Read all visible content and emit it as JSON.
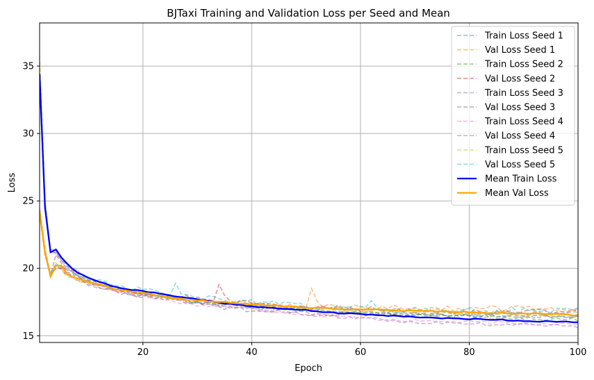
{
  "chart_data": {
    "type": "line",
    "title": "BJTaxi Training and Validation Loss per Seed and Mean",
    "xlabel": "Epoch",
    "ylabel": "Loss",
    "xlim": [
      1,
      100
    ],
    "ylim": [
      14.5,
      38.2
    ],
    "xticks": [
      20,
      40,
      60,
      80,
      100
    ],
    "yticks": [
      15,
      20,
      25,
      30,
      35
    ],
    "grid": true,
    "legend_position": "top-right",
    "seed_series": [
      {
        "name": "Train Loss Seed 1",
        "color": "#1f77b4",
        "style": "dashed",
        "anchors": [
          [
            1,
            34.5
          ],
          [
            2,
            25.0
          ],
          [
            3,
            21.3
          ],
          [
            4,
            21.1
          ],
          [
            6,
            20.2
          ],
          [
            10,
            19.1
          ],
          [
            15,
            18.5
          ],
          [
            20,
            18.1
          ],
          [
            30,
            17.5
          ],
          [
            40,
            17.2
          ],
          [
            50,
            16.9
          ],
          [
            60,
            16.7
          ],
          [
            70,
            16.6
          ],
          [
            80,
            16.5
          ],
          [
            90,
            16.5
          ],
          [
            100,
            16.4
          ]
        ],
        "noise": 0.12,
        "seed": 11
      },
      {
        "name": "Val Loss Seed 1",
        "color": "#ff7f0e",
        "style": "dashed",
        "anchors": [
          [
            1,
            24.5
          ],
          [
            2,
            21.5
          ],
          [
            3,
            19.5
          ],
          [
            4,
            20.4
          ],
          [
            6,
            19.5
          ],
          [
            10,
            19.0
          ],
          [
            15,
            18.4
          ],
          [
            20,
            18.1
          ],
          [
            30,
            17.6
          ],
          [
            40,
            17.3
          ],
          [
            50,
            17.2
          ],
          [
            60,
            17.1
          ],
          [
            70,
            17.1
          ],
          [
            80,
            17.0
          ],
          [
            90,
            17.0
          ],
          [
            100,
            17.0
          ]
        ],
        "noise": 0.22,
        "seed": 12,
        "spikes": [
          [
            51,
            18.5
          ],
          [
            52,
            17.6
          ]
        ]
      },
      {
        "name": "Train Loss Seed 2",
        "color": "#2ca02c",
        "style": "dashed",
        "anchors": [
          [
            1,
            34.2
          ],
          [
            2,
            24.8
          ],
          [
            3,
            21.2
          ],
          [
            4,
            21.3
          ],
          [
            6,
            20.3
          ],
          [
            10,
            19.2
          ],
          [
            15,
            18.5
          ],
          [
            20,
            18.1
          ],
          [
            30,
            17.5
          ],
          [
            40,
            17.2
          ],
          [
            50,
            16.9
          ],
          [
            60,
            16.7
          ],
          [
            70,
            16.5
          ],
          [
            80,
            16.4
          ],
          [
            90,
            16.3
          ],
          [
            100,
            16.2
          ]
        ],
        "noise": 0.12,
        "seed": 13
      },
      {
        "name": "Val Loss Seed 2",
        "color": "#d62728",
        "style": "dashed",
        "anchors": [
          [
            1,
            24.0
          ],
          [
            2,
            21.0
          ],
          [
            3,
            19.4
          ],
          [
            4,
            20.0
          ],
          [
            6,
            20.0
          ],
          [
            10,
            19.0
          ],
          [
            15,
            18.5
          ],
          [
            20,
            18.2
          ],
          [
            30,
            17.8
          ],
          [
            40,
            17.4
          ],
          [
            50,
            17.1
          ],
          [
            60,
            17.0
          ],
          [
            70,
            16.9
          ],
          [
            80,
            16.8
          ],
          [
            90,
            16.8
          ],
          [
            100,
            16.8
          ]
        ],
        "noise": 0.22,
        "seed": 14,
        "spikes": [
          [
            34,
            18.8
          ],
          [
            35,
            18.0
          ]
        ]
      },
      {
        "name": "Train Loss Seed 3",
        "color": "#9467bd",
        "style": "dashed",
        "anchors": [
          [
            1,
            34.0
          ],
          [
            2,
            24.6
          ],
          [
            3,
            21.2
          ],
          [
            4,
            21.2
          ],
          [
            6,
            20.0
          ],
          [
            10,
            19.0
          ],
          [
            15,
            18.4
          ],
          [
            20,
            18.0
          ],
          [
            30,
            17.4
          ],
          [
            40,
            17.0
          ],
          [
            50,
            16.6
          ],
          [
            60,
            16.3
          ],
          [
            70,
            16.0
          ],
          [
            80,
            15.9
          ],
          [
            90,
            15.8
          ],
          [
            100,
            15.7
          ]
        ],
        "noise": 0.12,
        "seed": 15
      },
      {
        "name": "Val Loss Seed 3",
        "color": "#8c564b",
        "style": "dashed",
        "anchors": [
          [
            1,
            24.3
          ],
          [
            2,
            21.2
          ],
          [
            3,
            19.5
          ],
          [
            4,
            21.0
          ],
          [
            6,
            19.8
          ],
          [
            10,
            18.9
          ],
          [
            15,
            18.3
          ],
          [
            20,
            18.0
          ],
          [
            30,
            17.4
          ],
          [
            40,
            16.9
          ],
          [
            50,
            16.7
          ],
          [
            60,
            16.6
          ],
          [
            70,
            16.5
          ],
          [
            80,
            16.4
          ],
          [
            90,
            16.4
          ],
          [
            100,
            16.4
          ]
        ],
        "noise": 0.2,
        "seed": 16
      },
      {
        "name": "Train Loss Seed 4",
        "color": "#e377c2",
        "style": "dashed",
        "anchors": [
          [
            1,
            34.0
          ],
          [
            2,
            24.5
          ],
          [
            3,
            21.1
          ],
          [
            4,
            21.2
          ],
          [
            6,
            20.0
          ],
          [
            10,
            19.0
          ],
          [
            15,
            18.3
          ],
          [
            20,
            17.9
          ],
          [
            30,
            17.3
          ],
          [
            40,
            17.0
          ],
          [
            50,
            16.6
          ],
          [
            60,
            16.3
          ],
          [
            70,
            16.1
          ],
          [
            80,
            16.0
          ],
          [
            90,
            15.9
          ],
          [
            100,
            15.9
          ]
        ],
        "noise": 0.12,
        "seed": 17
      },
      {
        "name": "Val Loss Seed 4",
        "color": "#7f7f7f",
        "style": "dashed",
        "anchors": [
          [
            1,
            24.2
          ],
          [
            2,
            21.0
          ],
          [
            3,
            19.6
          ],
          [
            4,
            20.2
          ],
          [
            6,
            19.6
          ],
          [
            10,
            18.9
          ],
          [
            15,
            18.4
          ],
          [
            20,
            18.0
          ],
          [
            30,
            17.6
          ],
          [
            40,
            17.2
          ],
          [
            50,
            17.0
          ],
          [
            60,
            16.9
          ],
          [
            70,
            16.8
          ],
          [
            80,
            16.7
          ],
          [
            90,
            16.6
          ],
          [
            100,
            16.6
          ]
        ],
        "noise": 0.22,
        "seed": 18
      },
      {
        "name": "Train Loss Seed 5",
        "color": "#bcbd22",
        "style": "dashed",
        "anchors": [
          [
            1,
            35.8
          ],
          [
            2,
            25.0
          ],
          [
            3,
            21.4
          ],
          [
            4,
            21.4
          ],
          [
            6,
            20.3
          ],
          [
            10,
            19.2
          ],
          [
            15,
            18.6
          ],
          [
            20,
            18.2
          ],
          [
            30,
            17.6
          ],
          [
            40,
            17.3
          ],
          [
            50,
            17.0
          ],
          [
            60,
            16.8
          ],
          [
            70,
            16.7
          ],
          [
            80,
            16.6
          ],
          [
            90,
            16.5
          ],
          [
            100,
            16.5
          ]
        ],
        "noise": 0.12,
        "seed": 19
      },
      {
        "name": "Val Loss Seed 5",
        "color": "#17becf",
        "style": "dashed",
        "anchors": [
          [
            1,
            24.1
          ],
          [
            2,
            21.2
          ],
          [
            3,
            19.6
          ],
          [
            4,
            20.3
          ],
          [
            6,
            19.8
          ],
          [
            10,
            19.2
          ],
          [
            15,
            18.6
          ],
          [
            20,
            18.4
          ],
          [
            30,
            17.8
          ],
          [
            40,
            17.5
          ],
          [
            50,
            17.2
          ],
          [
            60,
            17.0
          ],
          [
            70,
            16.9
          ],
          [
            80,
            16.9
          ],
          [
            90,
            16.9
          ],
          [
            100,
            16.9
          ]
        ],
        "noise": 0.22,
        "seed": 20,
        "spikes": [
          [
            26,
            18.9
          ],
          [
            27,
            18.1
          ],
          [
            62,
            17.6
          ]
        ]
      }
    ],
    "mean_series": [
      {
        "name": "Mean Train Loss",
        "color": "#0000ff",
        "style": "solid",
        "anchors": [
          [
            1,
            34.4
          ],
          [
            2,
            24.5
          ],
          [
            3,
            21.2
          ],
          [
            4,
            21.4
          ],
          [
            5,
            20.8
          ],
          [
            6,
            20.4
          ],
          [
            7,
            20.0
          ],
          [
            8,
            19.7
          ],
          [
            10,
            19.3
          ],
          [
            12,
            19.0
          ],
          [
            15,
            18.6
          ],
          [
            20,
            18.3
          ],
          [
            25,
            18.0
          ],
          [
            30,
            17.7
          ],
          [
            35,
            17.4
          ],
          [
            40,
            17.2
          ],
          [
            45,
            17.0
          ],
          [
            50,
            16.9
          ],
          [
            55,
            16.7
          ],
          [
            60,
            16.6
          ],
          [
            65,
            16.5
          ],
          [
            70,
            16.4
          ],
          [
            75,
            16.3
          ],
          [
            80,
            16.25
          ],
          [
            85,
            16.2
          ],
          [
            90,
            16.1
          ],
          [
            95,
            16.05
          ],
          [
            100,
            16.0
          ]
        ],
        "noise": 0.04,
        "seed": 21
      },
      {
        "name": "Mean Val Loss",
        "color": "#ffa500",
        "style": "solid",
        "anchors": [
          [
            1,
            24.2
          ],
          [
            2,
            21.2
          ],
          [
            3,
            19.4
          ],
          [
            4,
            20.2
          ],
          [
            5,
            20.2
          ],
          [
            6,
            19.6
          ],
          [
            7,
            19.4
          ],
          [
            8,
            19.2
          ],
          [
            10,
            19.0
          ],
          [
            12,
            18.8
          ],
          [
            15,
            18.4
          ],
          [
            20,
            18.2
          ],
          [
            25,
            17.8
          ],
          [
            30,
            17.6
          ],
          [
            35,
            17.5
          ],
          [
            40,
            17.3
          ],
          [
            45,
            17.2
          ],
          [
            50,
            17.1
          ],
          [
            55,
            17.0
          ],
          [
            60,
            16.95
          ],
          [
            65,
            16.9
          ],
          [
            70,
            16.85
          ],
          [
            75,
            16.8
          ],
          [
            80,
            16.75
          ],
          [
            85,
            16.7
          ],
          [
            90,
            16.65
          ],
          [
            95,
            16.6
          ],
          [
            100,
            16.5
          ]
        ],
        "noise": 0.05,
        "seed": 22
      }
    ]
  }
}
